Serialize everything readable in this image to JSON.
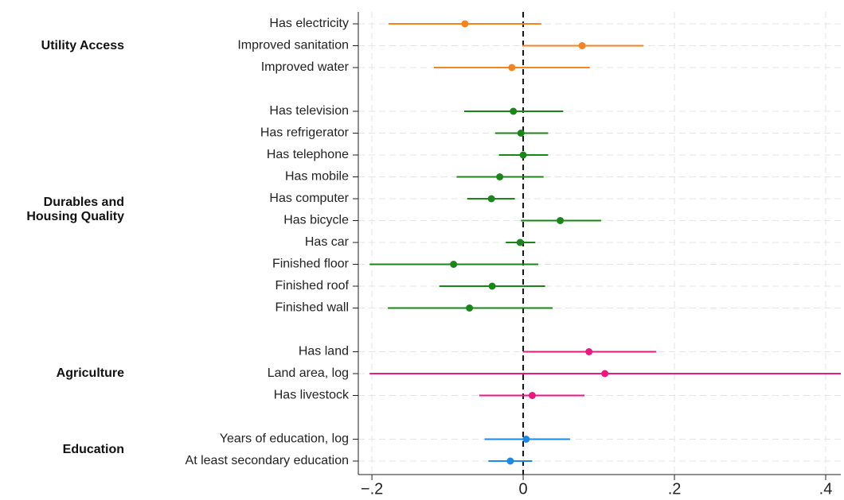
{
  "chart_data": {
    "type": "coefplot",
    "groups": [
      {
        "name": "Utility Access",
        "color": "#f5841f",
        "items": [
          {
            "label": "Has electricity",
            "estimate": -0.077,
            "lower": -0.178,
            "upper": 0.024
          },
          {
            "label": "Improved sanitation",
            "estimate": 0.078,
            "lower": -0.001,
            "upper": 0.159
          },
          {
            "label": "Improved water",
            "estimate": -0.015,
            "lower": -0.118,
            "upper": 0.088
          }
        ]
      },
      {
        "name": "Durables and Housing Quality",
        "color": "#1a861a",
        "items": [
          {
            "label": "Has television",
            "estimate": -0.013,
            "lower": -0.078,
            "upper": 0.053
          },
          {
            "label": "Has refrigerator",
            "estimate": -0.003,
            "lower": -0.037,
            "upper": 0.033
          },
          {
            "label": "Has telephone",
            "estimate": 0.0,
            "lower": -0.032,
            "upper": 0.033
          },
          {
            "label": "Has mobile",
            "estimate": -0.031,
            "lower": -0.088,
            "upper": 0.027
          },
          {
            "label": "Has computer",
            "estimate": -0.042,
            "lower": -0.074,
            "upper": -0.011
          },
          {
            "label": "Has bicycle",
            "estimate": 0.049,
            "lower": -0.003,
            "upper": 0.103
          },
          {
            "label": "Has car",
            "estimate": -0.004,
            "lower": -0.023,
            "upper": 0.016
          },
          {
            "label": "Finished floor",
            "estimate": -0.092,
            "lower": -0.203,
            "upper": 0.02
          },
          {
            "label": "Finished roof",
            "estimate": -0.041,
            "lower": -0.111,
            "upper": 0.029
          },
          {
            "label": "Finished wall",
            "estimate": -0.071,
            "lower": -0.179,
            "upper": 0.039
          }
        ]
      },
      {
        "name": "Agriculture",
        "color": "#e8197f",
        "items": [
          {
            "label": "Has land",
            "estimate": 0.087,
            "lower": 0.0,
            "upper": 0.176
          },
          {
            "label": "Land area, log",
            "estimate": 0.108,
            "lower": -0.203,
            "upper": 0.42
          },
          {
            "label": "Has livestock",
            "estimate": 0.012,
            "lower": -0.058,
            "upper": 0.081
          }
        ]
      },
      {
        "name": "Education",
        "color": "#1e88e5",
        "items": [
          {
            "label": "Years of education, log",
            "estimate": 0.004,
            "lower": -0.051,
            "upper": 0.062
          },
          {
            "label": "At least secondary education",
            "estimate": -0.017,
            "lower": -0.046,
            "upper": 0.012
          }
        ]
      }
    ],
    "xlim": [
      -0.218,
      0.42
    ],
    "xticks": [
      {
        "value": -0.2,
        "label": "−.2"
      },
      0,
      {
        "value": 0.2,
        "label": ".2"
      },
      {
        "value": 0.4,
        "label": ".4"
      }
    ],
    "reference_line": 0,
    "grid": true
  }
}
